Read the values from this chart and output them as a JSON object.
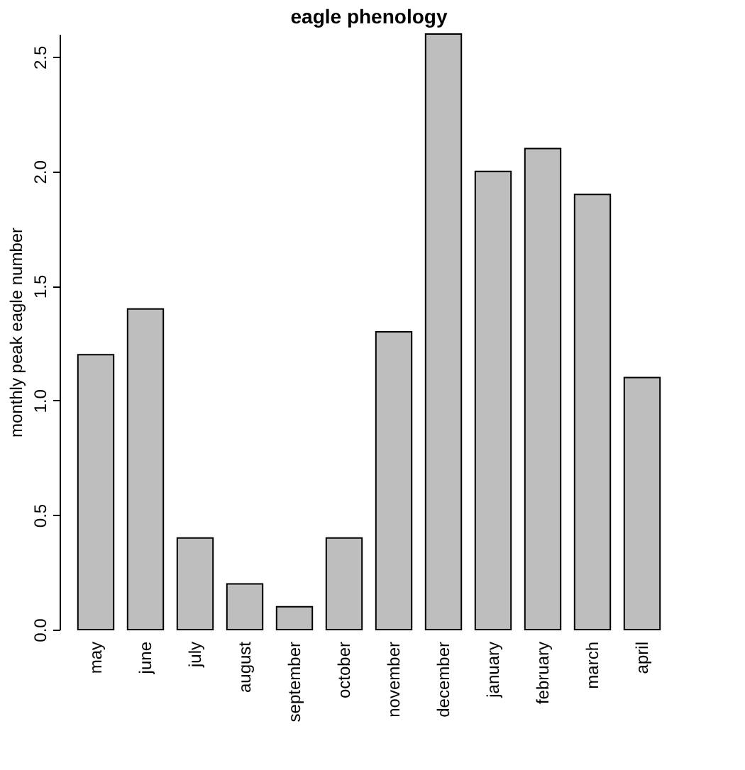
{
  "chart_data": {
    "type": "bar",
    "title": "eagle phenology",
    "ylabel": "monthly peak eagle number",
    "categories": [
      "may",
      "june",
      "july",
      "august",
      "september",
      "october",
      "november",
      "december",
      "january",
      "february",
      "march",
      "april"
    ],
    "values": [
      1.2,
      1.4,
      0.4,
      0.2,
      0.1,
      0.4,
      1.3,
      2.6,
      2.0,
      2.1,
      1.9,
      1.1
    ],
    "color": "#bebebe",
    "ylim": [
      0,
      2.6
    ],
    "yticks": [
      {
        "value": 0,
        "label": "0.0"
      },
      0.5,
      {
        "value": 1,
        "label": "1.0"
      },
      1.5,
      {
        "value": 2,
        "label": "2.0"
      },
      2.5
    ],
    "grid": false
  }
}
